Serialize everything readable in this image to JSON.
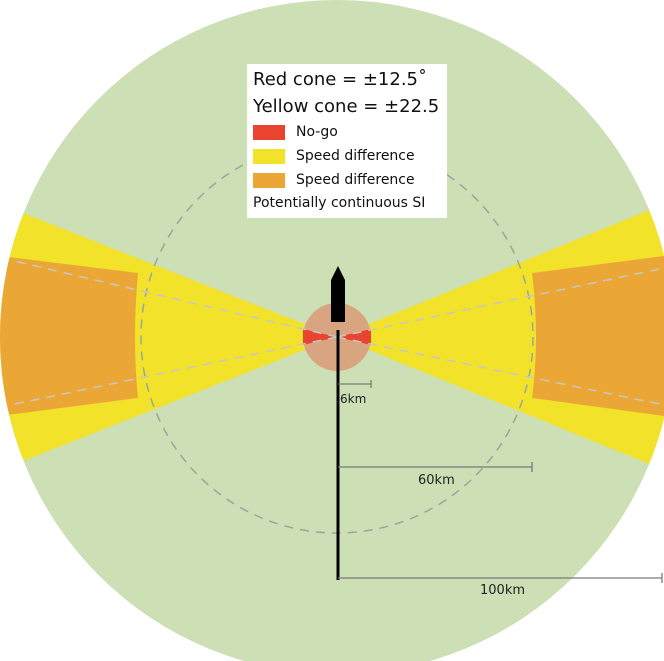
{
  "legend": {
    "red_cone": "Red cone = ±12.5˚",
    "yellow_cone": "Yellow cone = ±22.5",
    "items": [
      {
        "label": "No-go",
        "color": "#e8442f"
      },
      {
        "label": "Speed difference",
        "color": "#f3e22a"
      },
      {
        "label": "Speed difference",
        "color": "#eba736"
      }
    ],
    "note": "Potentially continuous SI"
  },
  "scale_bars": {
    "small": "6km",
    "medium": "60km",
    "large": "100km"
  },
  "colors": {
    "outer_zone": "#cddfb4",
    "no_go": "#e8442f",
    "yellow_cone": "#f3e22a",
    "orange_zone": "#eba736",
    "near_zone": "#d9a580",
    "vessel": "#000000",
    "dashed_ring": "#9aa5a0"
  }
}
